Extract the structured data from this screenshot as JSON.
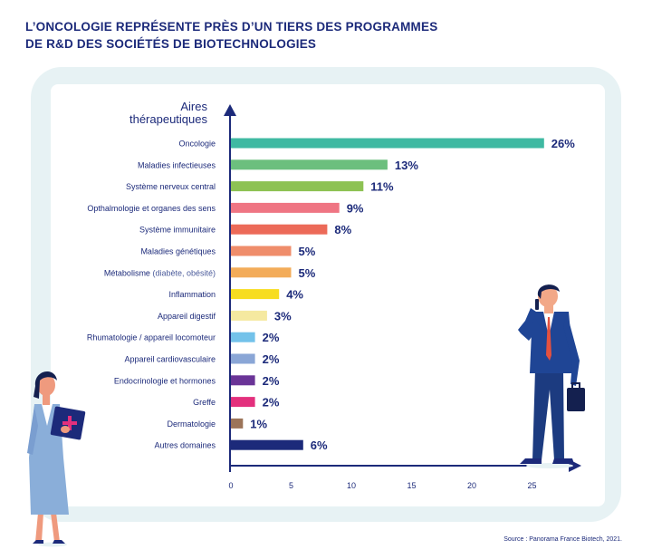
{
  "title": {
    "line1": "L’ONCOLOGIE REPRÉSENTE PRÈS D’UN TIERS DES PROGRAMMES",
    "line2": "DE R&D DES SOCIÉTÉS DE BIOTECHNOLOGIES"
  },
  "source": "Source : Panorama France Biotech, 2021.",
  "chart_data": {
    "type": "bar",
    "orientation": "horizontal",
    "ylabel_line1": "Aires",
    "ylabel_line2": "thérapeutiques",
    "xlabel": "",
    "xlim": [
      0,
      28
    ],
    "xticks": [
      0,
      5,
      10,
      15,
      20,
      25
    ],
    "grid": false,
    "categories": [
      {
        "name": "Oncologie",
        "detail": ""
      },
      {
        "name": "Maladies infectieuses",
        "detail": ""
      },
      {
        "name": "Système nerveux central",
        "detail": ""
      },
      {
        "name": "Opthalmologie et organes des sens",
        "detail": ""
      },
      {
        "name": "Système immunitaire",
        "detail": ""
      },
      {
        "name": "Maladies génétiques",
        "detail": ""
      },
      {
        "name": "Métabolisme",
        "detail": "(diabète, obésité)"
      },
      {
        "name": "Inflammation",
        "detail": ""
      },
      {
        "name": "Appareil digestif",
        "detail": ""
      },
      {
        "name": "Rhumatologie / appareil locomoteur",
        "detail": ""
      },
      {
        "name": "Appareil cardiovasculaire",
        "detail": ""
      },
      {
        "name": "Endocrinologie et hormones",
        "detail": ""
      },
      {
        "name": "Greffe",
        "detail": ""
      },
      {
        "name": "Dermatologie",
        "detail": ""
      },
      {
        "name": "Autres domaines",
        "detail": ""
      }
    ],
    "values": [
      26,
      13,
      11,
      9,
      8,
      5,
      5,
      4,
      3,
      2,
      2,
      2,
      2,
      1,
      6
    ],
    "value_labels": [
      "26%",
      "13%",
      "11%",
      "9%",
      "8%",
      "5%",
      "5%",
      "4%",
      "3%",
      "2%",
      "2%",
      "2%",
      "2%",
      "1%",
      "6%"
    ],
    "colors": [
      "#3fb9a2",
      "#6cbf7e",
      "#8dc253",
      "#ef7583",
      "#ec6a58",
      "#ef8d6b",
      "#f3ac59",
      "#f7dd1f",
      "#f5e9a0",
      "#73c2ea",
      "#8aa6d6",
      "#6a3497",
      "#e3307d",
      "#9c7459",
      "#1c2a7a"
    ]
  },
  "colors": {
    "navy": "#1c2a7a",
    "frame": "#e7f2f4"
  },
  "illustrations": {
    "left": "doctor-holding-clipboard",
    "right": "businessman-on-phone-with-briefcase"
  }
}
